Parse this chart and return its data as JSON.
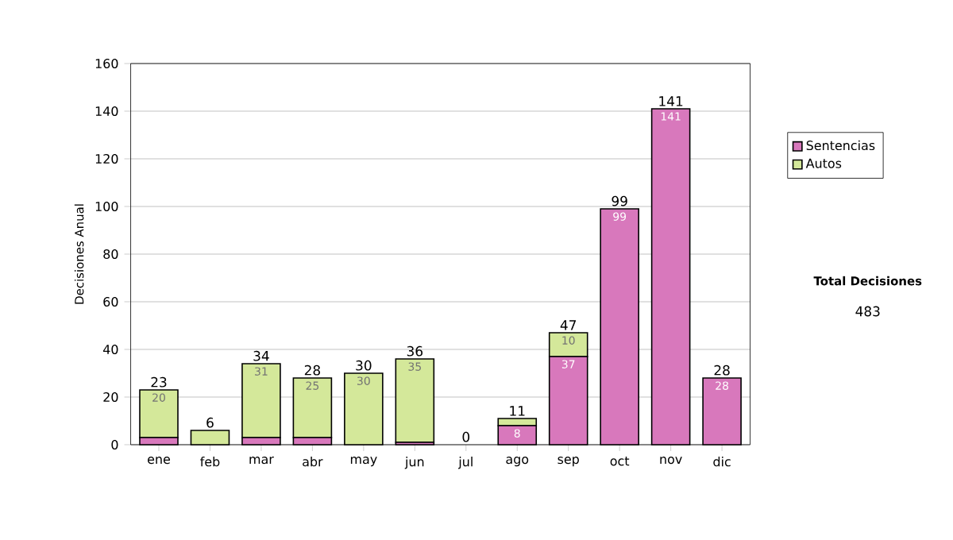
{
  "chart_data": {
    "type": "bar",
    "stacked": true,
    "ylabel": "Decisiones Anual",
    "categories": [
      "ene",
      "feb",
      "mar",
      "abr",
      "may",
      "jun",
      "jul",
      "ago",
      "sep",
      "oct",
      "nov",
      "dic"
    ],
    "series": [
      {
        "name": "Sentencias",
        "color": "#d878bc",
        "values": [
          3,
          0,
          3,
          3,
          0,
          1,
          0,
          8,
          37,
          99,
          141,
          28
        ],
        "value_labels": [
          null,
          null,
          null,
          null,
          null,
          null,
          null,
          "8",
          "37",
          "99",
          "141",
          "28"
        ]
      },
      {
        "name": "Autos",
        "color": "#d4e89a",
        "values": [
          20,
          6,
          31,
          25,
          30,
          35,
          0,
          3,
          10,
          0,
          0,
          0
        ],
        "value_labels": [
          "20",
          null,
          "31",
          "25",
          "30",
          "35",
          null,
          null,
          "10",
          null,
          null,
          null
        ]
      }
    ],
    "totals": [
      "23",
      "6",
      "34",
      "28",
      "30",
      "36",
      "0",
      "11",
      "47",
      "99",
      "141",
      "28"
    ],
    "ylim": [
      0,
      160
    ],
    "yticks": [
      0,
      20,
      40,
      60,
      80,
      100,
      120,
      140,
      160
    ],
    "grid": "y",
    "legend": "right",
    "annotations": [
      "Total Decisiones",
      "483"
    ]
  }
}
